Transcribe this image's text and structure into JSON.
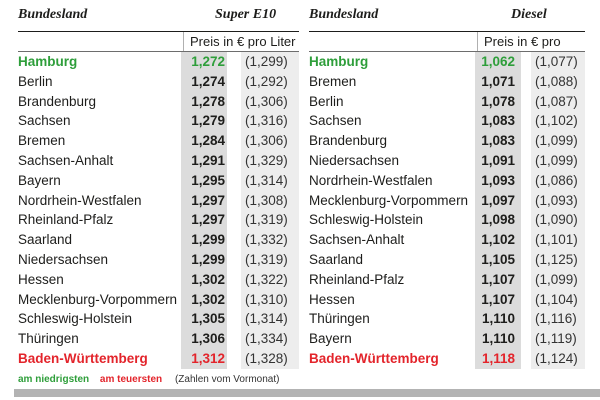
{
  "legend": {
    "lowest": "am niedrigsten",
    "highest": "am teuersten",
    "note": "(Zahlen vom Vormonat)"
  },
  "colors": {
    "lowest": "#2e9e3a",
    "highest": "#e3242b",
    "price_col": "#dcdcdc",
    "prev_col": "#ededed"
  },
  "tables": [
    {
      "col_label": "Bundesland",
      "fuel": "Super E10",
      "unit": "Preis in € pro Liter",
      "rows": [
        {
          "state": "Hamburg",
          "price": "1,272",
          "prev": "(1,299)",
          "mark": "green"
        },
        {
          "state": "Berlin",
          "price": "1,274",
          "prev": "(1,292)",
          "mark": ""
        },
        {
          "state": "Brandenburg",
          "price": "1,278",
          "prev": "(1,306)",
          "mark": ""
        },
        {
          "state": "Sachsen",
          "price": "1,279",
          "prev": "(1,316)",
          "mark": ""
        },
        {
          "state": "Bremen",
          "price": "1,284",
          "prev": "(1,306)",
          "mark": ""
        },
        {
          "state": "Sachsen-Anhalt",
          "price": "1,291",
          "prev": "(1,329)",
          "mark": ""
        },
        {
          "state": "Bayern",
          "price": "1,295",
          "prev": "(1,314)",
          "mark": ""
        },
        {
          "state": "Nordrhein-Westfalen",
          "price": "1,297",
          "prev": "(1,308)",
          "mark": ""
        },
        {
          "state": "Rheinland-Pfalz",
          "price": "1,297",
          "prev": "(1,319)",
          "mark": ""
        },
        {
          "state": "Saarland",
          "price": "1,299",
          "prev": "(1,332)",
          "mark": ""
        },
        {
          "state": "Niedersachsen",
          "price": "1,299",
          "prev": "(1,319)",
          "mark": ""
        },
        {
          "state": "Hessen",
          "price": "1,302",
          "prev": "(1,322)",
          "mark": ""
        },
        {
          "state": "Mecklenburg-Vorpommern",
          "price": "1,302",
          "prev": "(1,310)",
          "mark": ""
        },
        {
          "state": "Schleswig-Holstein",
          "price": "1,305",
          "prev": "(1,314)",
          "mark": ""
        },
        {
          "state": "Thüringen",
          "price": "1,306",
          "prev": "(1,334)",
          "mark": ""
        },
        {
          "state": "Baden-Württemberg",
          "price": "1,312",
          "prev": "(1,328)",
          "mark": "red"
        }
      ]
    },
    {
      "col_label": "Bundesland",
      "fuel": "Diesel",
      "unit": "Preis in € pro Liter",
      "rows": [
        {
          "state": "Hamburg",
          "price": "1,062",
          "prev": "(1,077)",
          "mark": "green"
        },
        {
          "state": "Bremen",
          "price": "1,071",
          "prev": "(1,088)",
          "mark": ""
        },
        {
          "state": "Berlin",
          "price": "1,078",
          "prev": "(1,087)",
          "mark": ""
        },
        {
          "state": "Sachsen",
          "price": "1,083",
          "prev": "(1,102)",
          "mark": ""
        },
        {
          "state": "Brandenburg",
          "price": "1,083",
          "prev": "(1,099)",
          "mark": ""
        },
        {
          "state": "Niedersachsen",
          "price": "1,091",
          "prev": "(1,099)",
          "mark": ""
        },
        {
          "state": "Nordrhein-Westfalen",
          "price": "1,093",
          "prev": "(1,086)",
          "mark": ""
        },
        {
          "state": "Mecklenburg-Vorpommern",
          "price": "1,097",
          "prev": "(1,093)",
          "mark": ""
        },
        {
          "state": "Schleswig-Holstein",
          "price": "1,098",
          "prev": "(1,090)",
          "mark": ""
        },
        {
          "state": "Sachsen-Anhalt",
          "price": "1,102",
          "prev": "(1,101)",
          "mark": ""
        },
        {
          "state": "Saarland",
          "price": "1,105",
          "prev": "(1,125)",
          "mark": ""
        },
        {
          "state": "Rheinland-Pfalz",
          "price": "1,107",
          "prev": "(1,099)",
          "mark": ""
        },
        {
          "state": "Hessen",
          "price": "1,107",
          "prev": "(1,104)",
          "mark": ""
        },
        {
          "state": "Thüringen",
          "price": "1,110",
          "prev": "(1,116)",
          "mark": ""
        },
        {
          "state": "Bayern",
          "price": "1,110",
          "prev": "(1,119)",
          "mark": ""
        },
        {
          "state": "Baden-Württemberg",
          "price": "1,118",
          "prev": "(1,124)",
          "mark": "red"
        }
      ]
    }
  ]
}
